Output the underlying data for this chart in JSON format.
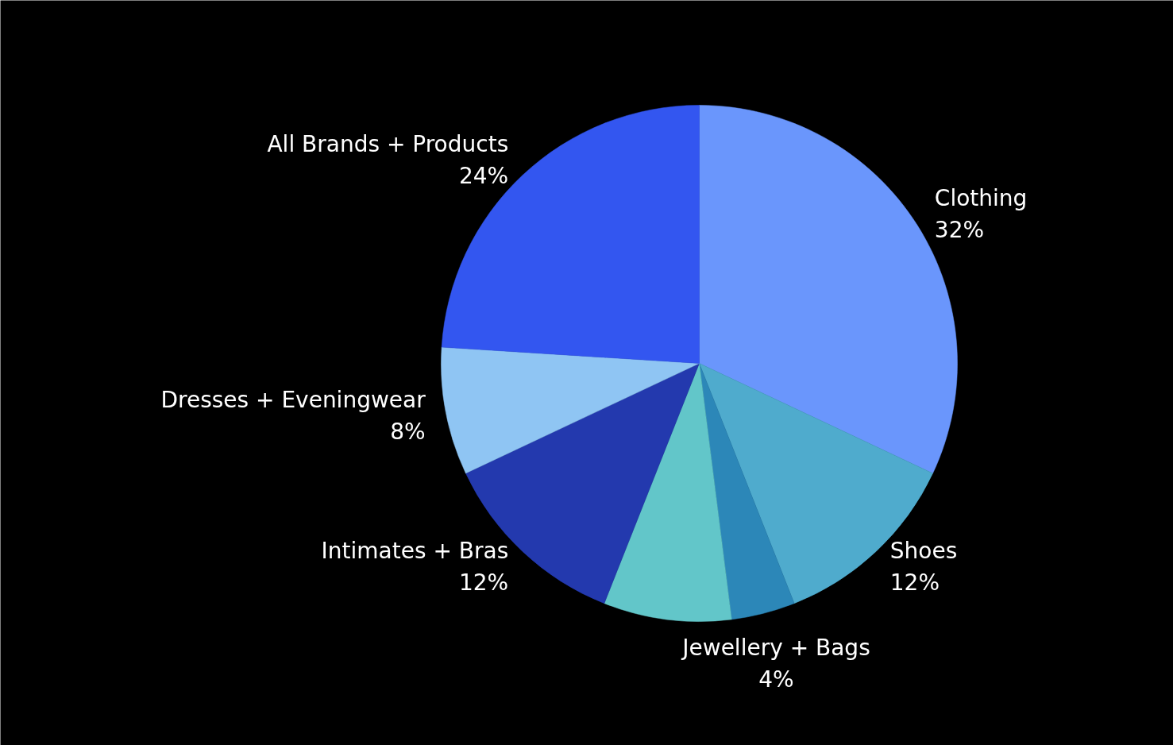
{
  "chart_data": {
    "type": "pie",
    "categories": [
      "Clothing",
      "Shoes",
      "Jewellery + Bags",
      null,
      "Intimates + Bras",
      "Dresses + Eveningwear",
      "All Brands + Products"
    ],
    "values": [
      32,
      12,
      4,
      8,
      12,
      8,
      24
    ],
    "colors": [
      "#6a96fc",
      "#4fabcd",
      "#2c87b8",
      "#62c6c9",
      "#2339ae",
      "#8fc5f3",
      "#3356f0"
    ],
    "value_labels": [
      "32%",
      "12%",
      "4%",
      null,
      "12%",
      "8%",
      "24%"
    ]
  }
}
